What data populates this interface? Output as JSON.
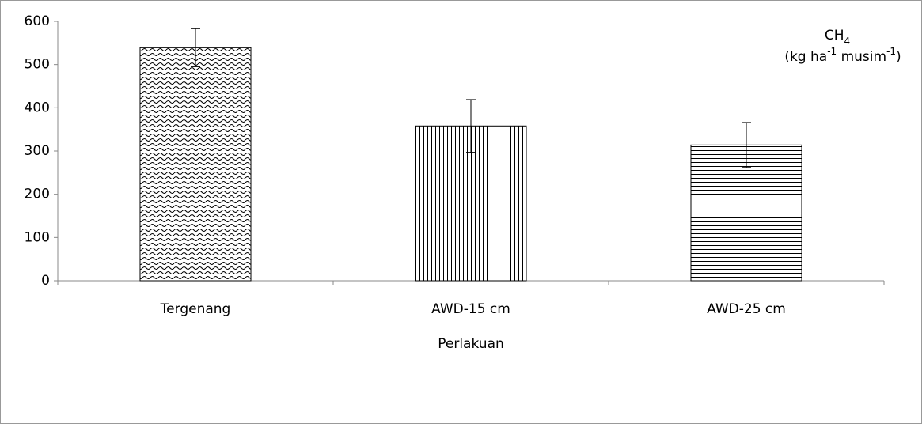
{
  "chart_data": {
    "type": "bar",
    "x_label": "Perlakuan",
    "annotation": [
      [
        {
          "text": "CH"
        },
        {
          "text": "4",
          "shift": "sub"
        }
      ],
      [
        {
          "text": "(kg ha"
        },
        {
          "text": "-1",
          "shift": "super"
        },
        {
          "text": " musim"
        },
        {
          "text": "-1",
          "shift": "super"
        },
        {
          "text": ")"
        }
      ]
    ],
    "categories": [
      "Tergenang",
      "AWD-15 cm",
      "AWD-25 cm"
    ],
    "values": [
      539,
      358,
      314
    ],
    "errors": [
      44,
      61,
      52
    ],
    "patterns": [
      "wave",
      "vertical",
      "horizontal"
    ],
    "color": "#000000",
    "ylim": [
      0,
      600
    ],
    "yticks": [
      0,
      100,
      200,
      300,
      400,
      500,
      600
    ],
    "grid": false
  }
}
